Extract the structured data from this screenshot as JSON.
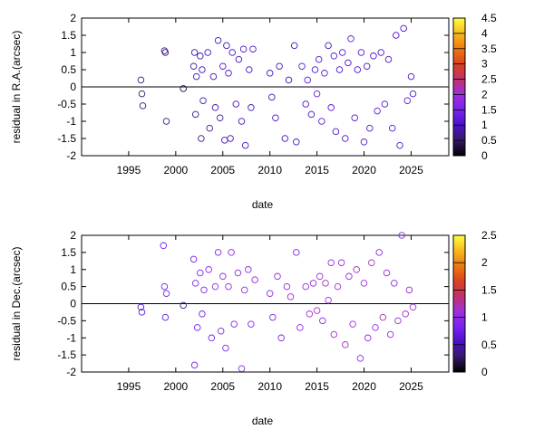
{
  "chart_data": [
    {
      "type": "scatter",
      "xlabel": "date",
      "ylabel": "residual in R.A.(arcsec)",
      "xlim": [
        1990,
        2029
      ],
      "ylim": [
        -2,
        2
      ],
      "xticks": [
        "1995",
        "2000",
        "2005",
        "2010",
        "2015",
        "2020",
        "2025"
      ],
      "yticks": [
        "-2",
        "-1.5",
        "-1",
        "-0.5",
        "0",
        "0.5",
        "1",
        "1.5",
        "2"
      ],
      "zero_line": true,
      "colorbar": {
        "min": 0,
        "max": 4.5,
        "ticks": [
          "0",
          "0.5",
          "1",
          "1.5",
          "2",
          "2.5",
          "3",
          "3.5",
          "4",
          "4.5"
        ]
      },
      "x": [
        1996.3,
        1996.4,
        1996.5,
        1998.8,
        1998.9,
        1999.0,
        2000.8,
        2001.9,
        2002.0,
        2002.1,
        2002.2,
        2002.6,
        2002.7,
        2002.8,
        2002.9,
        2003.4,
        2003.6,
        2004.0,
        2004.2,
        2004.5,
        2004.7,
        2005.0,
        2005.2,
        2005.4,
        2005.6,
        2005.8,
        2006.0,
        2006.4,
        2006.7,
        2007.0,
        2007.2,
        2007.4,
        2007.8,
        2008.0,
        2008.2,
        2010.0,
        2010.2,
        2010.6,
        2011.0,
        2011.6,
        2012.0,
        2012.6,
        2012.8,
        2013.4,
        2013.8,
        2014.0,
        2014.4,
        2014.8,
        2015.0,
        2015.2,
        2015.5,
        2015.8,
        2016.2,
        2016.5,
        2016.8,
        2017.0,
        2017.4,
        2017.7,
        2018.0,
        2018.3,
        2018.6,
        2019.0,
        2019.3,
        2019.7,
        2020.0,
        2020.3,
        2020.6,
        2021.0,
        2021.4,
        2021.8,
        2022.2,
        2022.6,
        2023.0,
        2023.4,
        2023.8,
        2024.2,
        2024.6,
        2025.0,
        2025.2
      ],
      "y": [
        0.2,
        -0.2,
        -0.55,
        1.05,
        1.0,
        -1.0,
        -0.05,
        0.6,
        1.0,
        -0.8,
        0.3,
        0.9,
        -1.5,
        0.5,
        -0.4,
        1.0,
        -1.2,
        0.3,
        -0.6,
        1.35,
        -0.9,
        0.6,
        -1.55,
        1.2,
        0.4,
        -1.5,
        1.0,
        -0.5,
        0.8,
        -1.0,
        1.1,
        -1.7,
        0.5,
        -0.6,
        1.1,
        0.4,
        -0.3,
        -0.9,
        0.6,
        -1.5,
        0.2,
        1.2,
        -1.6,
        0.6,
        -0.5,
        0.2,
        -0.8,
        0.5,
        -0.2,
        0.8,
        -1.0,
        0.4,
        1.2,
        -0.6,
        0.9,
        -1.3,
        0.5,
        1.0,
        -1.5,
        0.7,
        1.4,
        -0.9,
        0.5,
        1.0,
        -1.6,
        0.6,
        -1.2,
        0.9,
        -0.7,
        1.0,
        -0.5,
        0.8,
        -1.2,
        1.5,
        -1.7,
        1.7,
        -0.4,
        0.3,
        -0.2
      ],
      "c": [
        0.6,
        0.5,
        0.6,
        0.7,
        0.6,
        0.7,
        0.3,
        0.8,
        0.8,
        0.7,
        0.9,
        0.8,
        0.7,
        0.9,
        0.8,
        0.9,
        0.7,
        0.9,
        0.8,
        0.9,
        0.8,
        1.0,
        0.9,
        1.0,
        1.0,
        0.9,
        1.0,
        0.9,
        1.0,
        0.9,
        1.0,
        0.9,
        1.0,
        0.9,
        1.0,
        1.0,
        0.9,
        1.0,
        0.9,
        1.0,
        0.9,
        1.0,
        1.0,
        1.1,
        1.0,
        1.2,
        1.0,
        1.1,
        1.3,
        1.1,
        1.2,
        1.2,
        1.0,
        1.1,
        1.2,
        1.1,
        1.0,
        1.2,
        1.1,
        1.0,
        1.2,
        1.1,
        1.0,
        1.2,
        1.1,
        1.0,
        1.1,
        1.0,
        1.2,
        1.0,
        1.1,
        1.0,
        1.2,
        1.0,
        1.1,
        1.0,
        1.2,
        1.0,
        1.1
      ]
    },
    {
      "type": "scatter",
      "xlabel": "date",
      "ylabel": "residual in Dec.(arcsec)",
      "xlim": [
        1990,
        2029
      ],
      "ylim": [
        -2,
        2
      ],
      "xticks": [
        "1995",
        "2000",
        "2005",
        "2010",
        "2015",
        "2020",
        "2025"
      ],
      "yticks": [
        "-2",
        "-1.5",
        "-1",
        "-0.5",
        "0",
        "0.5",
        "1",
        "1.5",
        "2"
      ],
      "zero_line": true,
      "colorbar": {
        "min": 0,
        "max": 2.5,
        "ticks": [
          "0",
          "0.5",
          "1",
          "1.5",
          "2",
          "2.5"
        ]
      },
      "x": [
        1996.3,
        1996.4,
        1998.7,
        1998.8,
        1998.9,
        1999.0,
        2000.8,
        2001.9,
        2002.0,
        2002.1,
        2002.3,
        2002.6,
        2002.8,
        2003.0,
        2003.5,
        2003.8,
        2004.2,
        2004.5,
        2004.8,
        2005.0,
        2005.3,
        2005.6,
        2005.9,
        2006.2,
        2006.6,
        2007.0,
        2007.3,
        2007.7,
        2008.0,
        2008.4,
        2010.0,
        2010.3,
        2010.8,
        2011.2,
        2011.8,
        2012.2,
        2012.8,
        2013.2,
        2013.8,
        2014.2,
        2014.6,
        2015.0,
        2015.3,
        2015.6,
        2015.9,
        2016.2,
        2016.5,
        2016.8,
        2017.2,
        2017.6,
        2018.0,
        2018.4,
        2018.8,
        2019.2,
        2019.6,
        2020.0,
        2020.4,
        2020.8,
        2021.2,
        2021.6,
        2022.0,
        2022.4,
        2022.8,
        2023.2,
        2023.6,
        2024.0,
        2024.4,
        2024.8,
        2025.2
      ],
      "y": [
        -0.1,
        -0.25,
        1.7,
        0.5,
        -0.4,
        0.3,
        -0.05,
        1.3,
        -1.8,
        0.6,
        -0.7,
        0.9,
        -0.3,
        0.4,
        1.0,
        -1.0,
        0.5,
        1.5,
        -0.8,
        0.8,
        -1.3,
        0.5,
        1.5,
        -0.6,
        0.9,
        -1.9,
        0.4,
        1.0,
        -0.6,
        0.7,
        0.3,
        -0.4,
        0.8,
        -1.0,
        0.5,
        0.2,
        1.5,
        -0.7,
        0.5,
        -0.3,
        0.6,
        -0.2,
        0.8,
        -0.5,
        0.6,
        0.1,
        1.2,
        -0.9,
        0.5,
        1.2,
        -1.2,
        0.8,
        -0.6,
        1.0,
        -1.6,
        0.6,
        -1.0,
        1.2,
        -0.7,
        1.5,
        -0.4,
        0.9,
        -0.9,
        0.6,
        -0.5,
        2.0,
        -0.3,
        0.4,
        -0.1
      ],
      "c": [
        0.6,
        0.7,
        0.8,
        0.8,
        0.7,
        0.8,
        0.3,
        0.8,
        0.8,
        0.9,
        0.8,
        0.9,
        0.8,
        0.9,
        0.9,
        0.8,
        1.0,
        0.9,
        0.9,
        1.0,
        0.9,
        1.0,
        1.0,
        0.9,
        1.0,
        0.9,
        1.0,
        1.0,
        0.9,
        1.0,
        1.0,
        0.9,
        1.0,
        0.9,
        1.0,
        1.0,
        0.9,
        1.0,
        1.0,
        1.1,
        1.0,
        1.2,
        1.1,
        1.0,
        1.2,
        1.1,
        1.0,
        1.2,
        1.1,
        1.0,
        1.2,
        1.0,
        1.1,
        1.2,
        1.0,
        1.1,
        1.0,
        1.2,
        1.1,
        1.0,
        1.2,
        1.0,
        1.1,
        1.0,
        1.1,
        1.0,
        1.2,
        1.0,
        1.1
      ]
    }
  ]
}
